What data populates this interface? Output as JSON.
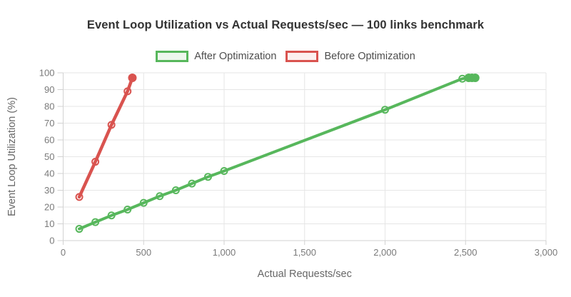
{
  "chart_data": {
    "type": "line",
    "title": "Event Loop Utilization vs Actual Requests/sec — 100 links benchmark",
    "xlabel": "Actual Requests/sec",
    "ylabel": "Event Loop Utilization (%)",
    "xlim": [
      0,
      3000
    ],
    "ylim": [
      0,
      100
    ],
    "grid": true,
    "legend_position": "top",
    "x_ticks": [
      {
        "value": 0,
        "label": "0"
      },
      {
        "value": 500,
        "label": "500"
      },
      {
        "value": 1000,
        "label": "1,000"
      },
      {
        "value": 1500,
        "label": "1,500"
      },
      {
        "value": 2000,
        "label": "2,000"
      },
      {
        "value": 2500,
        "label": "2,500"
      },
      {
        "value": 3000,
        "label": "3,000"
      }
    ],
    "y_ticks": [
      {
        "value": 0,
        "label": "0"
      },
      {
        "value": 10,
        "label": "10"
      },
      {
        "value": 20,
        "label": "20"
      },
      {
        "value": 30,
        "label": "30"
      },
      {
        "value": 40,
        "label": "40"
      },
      {
        "value": 50,
        "label": "50"
      },
      {
        "value": 60,
        "label": "60"
      },
      {
        "value": 70,
        "label": "70"
      },
      {
        "value": 80,
        "label": "80"
      },
      {
        "value": 90,
        "label": "90"
      },
      {
        "value": 100,
        "label": "100"
      }
    ],
    "colors": {
      "grid": "#e6e6e6",
      "axis": "#d2d2d2",
      "tick_text": "#7a7a7a",
      "axis_title_text": "#666666",
      "title_text": "#333333"
    },
    "series": [
      {
        "name": "After Optimization",
        "color": "#57b75c",
        "legend_fill": "#edf7ed",
        "line_width": 4,
        "marker_radius": 4.5,
        "points": [
          {
            "x": 100,
            "y": 7
          },
          {
            "x": 200,
            "y": 11
          },
          {
            "x": 300,
            "y": 15
          },
          {
            "x": 400,
            "y": 18.5
          },
          {
            "x": 500,
            "y": 22.5
          },
          {
            "x": 600,
            "y": 26.5
          },
          {
            "x": 700,
            "y": 30
          },
          {
            "x": 800,
            "y": 34
          },
          {
            "x": 900,
            "y": 38
          },
          {
            "x": 1000,
            "y": 41.5
          },
          {
            "x": 2000,
            "y": 78
          },
          {
            "x": 2480,
            "y": 96.5
          },
          {
            "x": 2520,
            "y": 97,
            "filled": true
          },
          {
            "x": 2540,
            "y": 97,
            "filled": true
          },
          {
            "x": 2560,
            "y": 97,
            "filled": true
          }
        ]
      },
      {
        "name": "Before Optimization",
        "color": "#d9534f",
        "legend_fill": "#fcefee",
        "line_width": 4.5,
        "marker_radius": 4.5,
        "points": [
          {
            "x": 100,
            "y": 26
          },
          {
            "x": 200,
            "y": 47
          },
          {
            "x": 300,
            "y": 69
          },
          {
            "x": 400,
            "y": 89
          },
          {
            "x": 430,
            "y": 97,
            "filled": true
          }
        ]
      }
    ]
  }
}
